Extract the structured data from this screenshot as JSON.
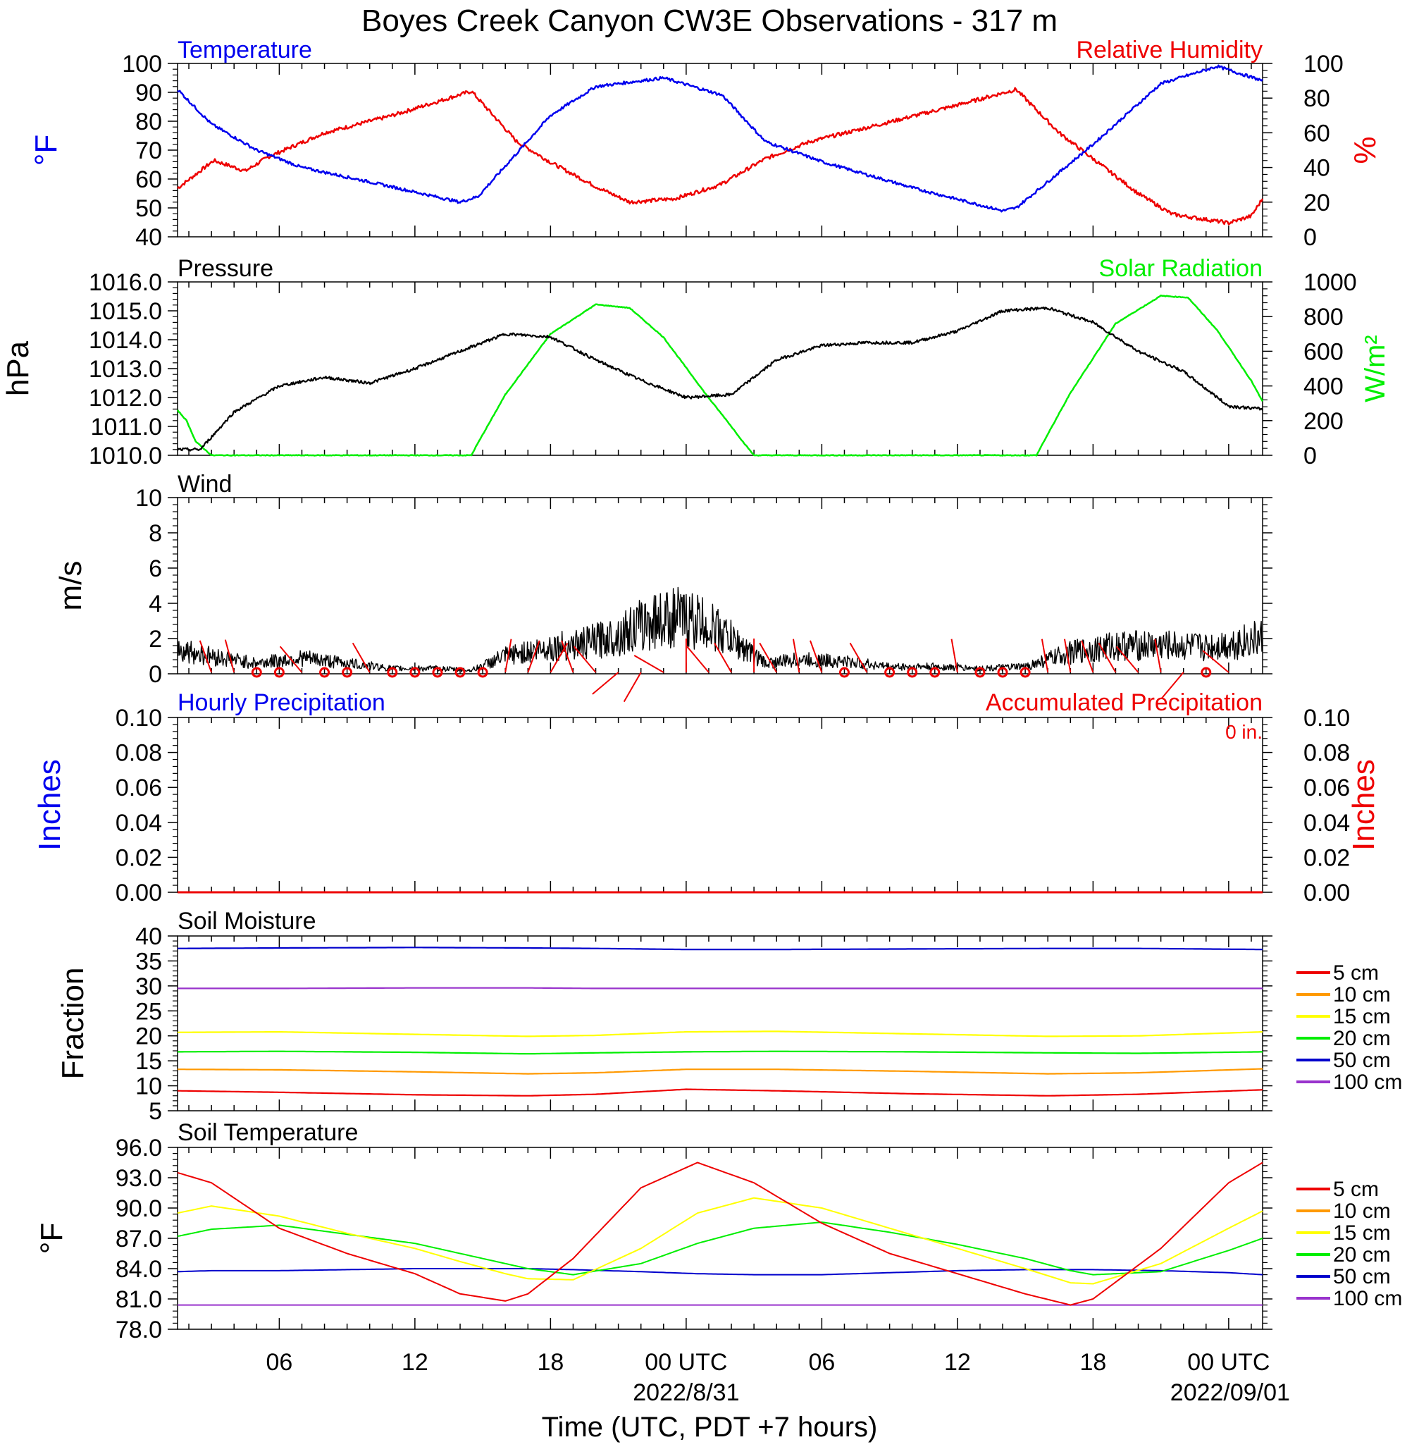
{
  "title": "Boyes Creek Canyon CW3E Observations - 317 m",
  "xlabel": "Time (UTC, PDT +7 hours)",
  "time_ticks": [
    "06",
    "12",
    "18",
    "00 UTC",
    "06",
    "12",
    "18",
    "00 UTC"
  ],
  "date_labels": [
    "2022/8/31",
    "2022/09/01"
  ],
  "colors": {
    "temperature": "#0000ee",
    "humidity": "#ee0000",
    "pressure": "#000000",
    "solar": "#00ee00",
    "wind": "#000000",
    "barb": "#ee0000",
    "soil_5": "#ee0000",
    "soil_10": "#ff9900",
    "soil_15": "#ffff00",
    "soil_20": "#00ee00",
    "soil_50": "#0000cc",
    "soil_100": "#9933cc"
  },
  "chart_data": [
    {
      "type": "line",
      "name": "temperature-humidity",
      "left_title": "Temperature",
      "right_title": "Relative Humidity",
      "ylabel_left": "°F",
      "ylabel_right": "%",
      "ylim_left": [
        40,
        100
      ],
      "ylim_right": [
        0,
        100
      ],
      "yticks_left": [
        "40",
        "50",
        "60",
        "70",
        "80",
        "90",
        "100"
      ],
      "yticks_right": [
        "0",
        "20",
        "40",
        "60",
        "80",
        "100"
      ],
      "x_hours": [
        1.5,
        3,
        5,
        7,
        10,
        14,
        14.8,
        18,
        20,
        23,
        25.6,
        27.5,
        30,
        34,
        38,
        38.6,
        42,
        45,
        47.5,
        49.5
      ],
      "temperature_F": [
        91,
        79,
        70,
        64,
        59,
        52,
        54,
        82,
        92,
        95,
        89,
        73,
        66,
        57,
        49,
        50,
        72,
        93,
        99,
        94
      ],
      "x_hours_rh": [
        1.5,
        3.1,
        4.5,
        5.5,
        8,
        11,
        14.5,
        16.5,
        18,
        20,
        21.5,
        23.5,
        25.5,
        27.5,
        29.5,
        32,
        36,
        38.6,
        40.5,
        42,
        44,
        45.5,
        46.5,
        48,
        49,
        49.5
      ],
      "humidity_pct": [
        28,
        44,
        38,
        46,
        60,
        70,
        84,
        55,
        43,
        29,
        20,
        22,
        30,
        45,
        55,
        63,
        76,
        85,
        60,
        45,
        25,
        13,
        11,
        8,
        12,
        22
      ]
    },
    {
      "type": "line",
      "name": "pressure-solar",
      "left_title": "Pressure",
      "right_title": "Solar Radiation",
      "ylabel_left": "hPa",
      "ylabel_right": "W/m²",
      "ylim_left": [
        1010,
        1016
      ],
      "ylim_right": [
        0,
        1000
      ],
      "yticks_left": [
        "1010.0",
        "1011.0",
        "1012.0",
        "1013.0",
        "1014.0",
        "1015.0",
        "1016.0"
      ],
      "yticks_right": [
        "0",
        "200",
        "400",
        "600",
        "800",
        "1000"
      ],
      "x_hours": [
        1.5,
        2.5,
        4,
        6,
        8,
        10,
        12,
        14,
        16,
        18,
        20,
        22,
        24,
        26,
        28,
        30,
        32,
        34,
        36,
        38,
        40,
        42,
        44,
        46,
        48,
        49.5
      ],
      "pressure_hPa": [
        1010.2,
        1010.2,
        1011.5,
        1012.4,
        1012.7,
        1012.5,
        1013.0,
        1013.6,
        1014.2,
        1014.1,
        1013.3,
        1012.6,
        1012.0,
        1012.1,
        1013.3,
        1013.8,
        1013.9,
        1013.9,
        1014.3,
        1015.0,
        1015.1,
        1014.6,
        1013.6,
        1012.9,
        1011.7,
        1011.6
      ],
      "x_hours_solar": [
        1.5,
        1.9,
        2.3,
        3.0,
        14.5,
        14.7,
        16,
        18,
        20,
        21.5,
        23,
        25,
        25.8,
        26.5,
        27.0,
        39.5,
        39.7,
        41,
        43,
        45,
        46.2,
        47.5,
        49,
        49.5
      ],
      "solar_Wm2": [
        260,
        200,
        80,
        0,
        0,
        50,
        350,
        700,
        870,
        850,
        680,
        330,
        200,
        80,
        0,
        0,
        50,
        360,
        760,
        920,
        910,
        720,
        430,
        310
      ]
    },
    {
      "type": "line",
      "name": "wind",
      "left_title": "Wind",
      "ylabel_left": "m/s",
      "ylim_left": [
        0,
        10
      ],
      "yticks_left": [
        "0",
        "2",
        "4",
        "6",
        "8",
        "10"
      ],
      "x_hours": [
        1.5,
        3,
        5,
        7,
        9,
        11,
        13,
        14.5,
        16,
        18,
        19.5,
        21,
        22.5,
        23.5,
        24.5,
        25.5,
        26.5,
        27.5,
        29,
        31,
        33,
        35,
        37,
        39,
        41,
        43,
        45,
        47,
        49.5
      ],
      "speed_ms": [
        1.4,
        1.0,
        0.6,
        0.9,
        0.6,
        0.3,
        0.3,
        0.2,
        1.0,
        1.5,
        1.7,
        2.2,
        3.0,
        3.2,
        3.0,
        2.4,
        1.5,
        0.6,
        0.8,
        0.7,
        0.4,
        0.4,
        0.3,
        0.4,
        1.2,
        1.6,
        1.6,
        1.5,
        2.0
      ],
      "barb_hours": [
        3,
        4,
        5,
        6,
        7,
        8,
        9,
        10,
        11,
        12,
        13,
        14,
        15,
        16,
        17,
        18,
        19,
        20,
        21,
        22,
        23,
        24,
        25,
        26,
        27,
        28,
        29,
        30,
        31,
        32,
        33,
        34,
        35,
        36,
        37,
        38,
        39,
        40,
        41,
        42,
        43,
        44,
        45,
        46,
        47,
        48
      ],
      "barb_speed_ms": [
        1.5,
        2.0,
        0,
        0.3,
        1.8,
        0.3,
        0.3,
        1.9,
        0,
        0,
        0,
        0,
        0,
        1.6,
        1.8,
        1.9,
        1.6,
        2.2,
        2.5,
        2.6,
        2.7,
        0.9,
        2.7,
        2.5,
        0.5,
        2.0,
        2.0,
        1.6,
        0.4,
        2.0,
        0.1,
        0.3,
        0.1,
        1.9,
        0,
        0,
        0,
        1.6,
        2.1,
        1.9,
        2.1,
        2.0,
        2.0,
        2.6,
        0,
        2.1
      ],
      "barb_dir_deg": [
        340,
        345,
        0,
        0,
        320,
        0,
        0,
        330,
        0,
        0,
        0,
        0,
        0,
        10,
        20,
        30,
        340,
        320,
        230,
        210,
        300,
        0,
        320,
        330,
        0,
        330,
        350,
        340,
        0,
        330,
        0,
        0,
        0,
        350,
        0,
        0,
        0,
        350,
        350,
        340,
        330,
        320,
        350,
        220,
        0,
        310
      ]
    },
    {
      "type": "bar",
      "name": "precipitation",
      "left_title": "Hourly Precipitation",
      "right_title": "Accumulated Precipitation",
      "annotation": "0 in.",
      "ylabel_left": "Inches",
      "ylabel_right": "Inches",
      "ylim_left": [
        0,
        0.1
      ],
      "yticks_left": [
        "0.00",
        "0.02",
        "0.04",
        "0.06",
        "0.08",
        "0.10"
      ],
      "yticks_right": [
        "0.00",
        "0.02",
        "0.04",
        "0.06",
        "0.08",
        "0.10"
      ],
      "hourly_in": [
        0
      ],
      "accumulated_in": [
        0
      ]
    },
    {
      "type": "line",
      "name": "soil-moisture",
      "left_title": "Soil Moisture",
      "ylabel_left": "Fraction",
      "ylim_left": [
        5,
        40
      ],
      "yticks_left": [
        "5",
        "10",
        "15",
        "20",
        "25",
        "30",
        "35",
        "40"
      ],
      "legend": [
        "5 cm",
        "10 cm",
        "15 cm",
        "20 cm",
        "50 cm",
        "100 cm"
      ],
      "x_hours": [
        1.5,
        6,
        12,
        17,
        20,
        24,
        28,
        34,
        40,
        44,
        49.5
      ],
      "series": [
        {
          "name": "5 cm",
          "values": [
            9.0,
            8.7,
            8.2,
            8.0,
            8.3,
            9.3,
            9.0,
            8.4,
            8.0,
            8.3,
            9.2
          ]
        },
        {
          "name": "10 cm",
          "values": [
            13.3,
            13.2,
            12.8,
            12.4,
            12.6,
            13.3,
            13.3,
            12.9,
            12.4,
            12.6,
            13.4
          ]
        },
        {
          "name": "15 cm",
          "values": [
            20.7,
            20.8,
            20.3,
            19.9,
            20.1,
            20.8,
            20.9,
            20.4,
            19.9,
            20.0,
            20.8
          ]
        },
        {
          "name": "20 cm",
          "values": [
            16.8,
            16.9,
            16.7,
            16.4,
            16.6,
            16.8,
            16.9,
            16.8,
            16.6,
            16.5,
            16.8
          ]
        },
        {
          "name": "50 cm",
          "values": [
            37.5,
            37.6,
            37.7,
            37.6,
            37.5,
            37.3,
            37.3,
            37.4,
            37.5,
            37.5,
            37.3
          ]
        },
        {
          "name": "100 cm",
          "values": [
            29.5,
            29.5,
            29.6,
            29.6,
            29.5,
            29.5,
            29.5,
            29.5,
            29.5,
            29.5,
            29.5
          ]
        }
      ]
    },
    {
      "type": "line",
      "name": "soil-temperature",
      "left_title": "Soil Temperature",
      "ylabel_left": "°F",
      "ylim_left": [
        78,
        96
      ],
      "yticks_left": [
        "78.0",
        "81.0",
        "84.0",
        "87.0",
        "90.0",
        "93.0",
        "96.0"
      ],
      "legend": [
        "5 cm",
        "10 cm",
        "15 cm",
        "20 cm",
        "50 cm",
        "100 cm"
      ],
      "x_hours": [
        1.5,
        3,
        6,
        9,
        12,
        14,
        16,
        17,
        19,
        22,
        24.5,
        27,
        30,
        33,
        36,
        39,
        41,
        42,
        45,
        48,
        49.5
      ],
      "series": [
        {
          "name": "5 cm",
          "values": [
            93.5,
            92.5,
            88.0,
            85.5,
            83.5,
            81.5,
            80.8,
            81.5,
            85.0,
            92.0,
            94.5,
            92.5,
            88.5,
            85.5,
            83.5,
            81.5,
            80.4,
            81.0,
            86.0,
            92.5,
            94.5
          ]
        },
        {
          "name": "10 cm",
          "values": [
            null
          ]
        },
        {
          "name": "15 cm",
          "values": [
            89.5,
            90.2,
            89.2,
            87.5,
            86.0,
            84.7,
            83.5,
            83.0,
            82.9,
            86.0,
            89.5,
            91.0,
            90.0,
            88.0,
            86.0,
            84.0,
            82.6,
            82.5,
            84.5,
            88.0,
            89.7
          ]
        },
        {
          "name": "20 cm",
          "values": [
            87.2,
            87.9,
            88.3,
            87.4,
            86.5,
            85.5,
            84.5,
            84.0,
            83.4,
            84.5,
            86.5,
            88.0,
            88.6,
            87.6,
            86.4,
            85.0,
            83.8,
            83.4,
            83.7,
            85.8,
            87.0
          ]
        },
        {
          "name": "50 cm",
          "values": [
            83.7,
            83.8,
            83.8,
            83.9,
            84.0,
            84.0,
            84.0,
            84.0,
            83.9,
            83.7,
            83.5,
            83.4,
            83.4,
            83.6,
            83.8,
            83.9,
            83.9,
            83.9,
            83.8,
            83.6,
            83.4
          ]
        },
        {
          "name": "100 cm",
          "values": [
            80.4,
            80.4,
            80.4,
            80.4,
            80.4,
            80.4,
            80.4,
            80.4,
            80.4,
            80.4,
            80.4,
            80.4,
            80.4,
            80.4,
            80.4,
            80.4,
            80.4,
            80.4,
            80.4,
            80.4,
            80.4
          ]
        }
      ]
    }
  ]
}
